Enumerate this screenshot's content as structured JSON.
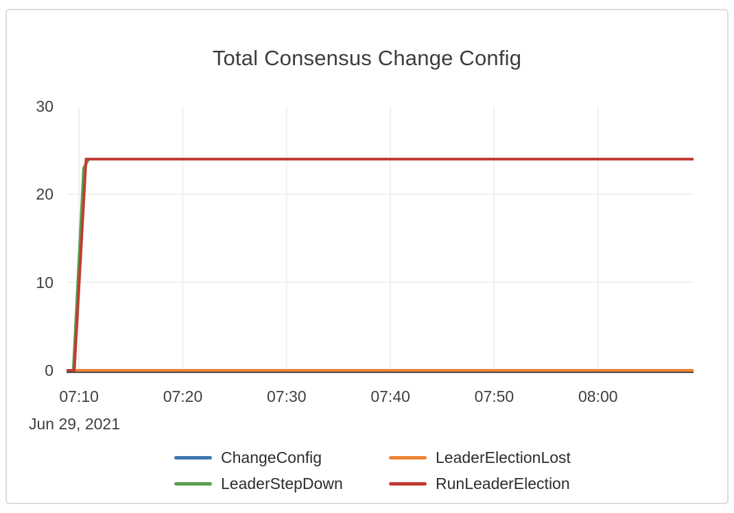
{
  "page": {
    "background": "#ffffff"
  },
  "card": {
    "border_color": "#dcdcdc",
    "background": "#ffffff"
  },
  "chart_data": {
    "type": "line",
    "title": "Total Consensus Change Config",
    "x_axis": {
      "unit": "minutes after 07:00 on Jun 29, 2021",
      "date_label": "Jun 29, 2021",
      "range": [
        8.8,
        69.2
      ],
      "ticks": [
        {
          "value": 10,
          "label": "07:10"
        },
        {
          "value": 20,
          "label": "07:20"
        },
        {
          "value": 30,
          "label": "07:30"
        },
        {
          "value": 40,
          "label": "07:40"
        },
        {
          "value": 50,
          "label": "07:50"
        },
        {
          "value": 60,
          "label": "08:00"
        }
      ]
    },
    "y_axis": {
      "range": [
        0,
        30
      ],
      "ticks": [
        {
          "value": 0,
          "label": "0"
        },
        {
          "value": 10,
          "label": "10"
        },
        {
          "value": 20,
          "label": "20"
        },
        {
          "value": 30,
          "label": "30"
        }
      ],
      "gridlines_at": [
        10,
        20
      ],
      "axis_line_color": "#3a3a3a",
      "gridline_color": "#ebebeb"
    },
    "legend_position": "bottom",
    "series": [
      {
        "name": "ChangeConfig",
        "color": "#3c76af",
        "points": [
          [
            8.8,
            0
          ],
          [
            69.2,
            0
          ]
        ]
      },
      {
        "name": "LeaderElectionLost",
        "color": "#ee8435",
        "points": [
          [
            8.8,
            0
          ],
          [
            69.2,
            0
          ]
        ]
      },
      {
        "name": "LeaderStepDown",
        "color": "#56a14c",
        "points": [
          [
            8.8,
            0
          ],
          [
            9.45,
            0
          ],
          [
            10.45,
            23
          ],
          [
            10.95,
            24
          ],
          [
            69.2,
            24
          ]
        ]
      },
      {
        "name": "RunLeaderElection",
        "color": "#c03d33",
        "points": [
          [
            8.8,
            0
          ],
          [
            9.55,
            0
          ],
          [
            10.68,
            24
          ],
          [
            69.2,
            24
          ]
        ]
      }
    ]
  }
}
